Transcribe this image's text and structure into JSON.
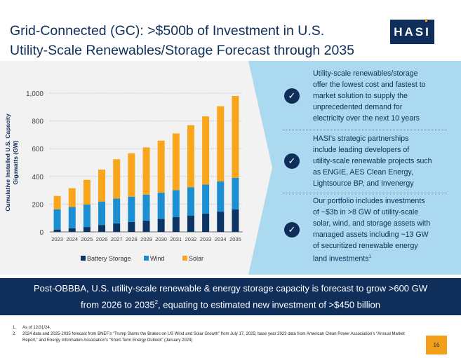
{
  "header": {
    "title_line1": "Grid-Connected (GC): >$500b of Investment in U.S.",
    "title_line2": "Utility-Scale Renewables/Storage Forecast through 2035",
    "logo_text": "HASI"
  },
  "colors": {
    "navy": "#0f2e5a",
    "battery": "#0c3566",
    "wind": "#1b8fd2",
    "solar": "#f9a61c",
    "panel": "#abd9ef",
    "accent": "#f5a01a"
  },
  "chart_data": {
    "type": "bar",
    "stacked": true,
    "categories": [
      "2023",
      "2024",
      "2025",
      "2026",
      "2027",
      "2028",
      "2029",
      "2030",
      "2031",
      "2032",
      "2033",
      "2034",
      "2035"
    ],
    "series": [
      {
        "name": "Battery Storage",
        "values": [
          17,
          27,
          35,
          50,
          61,
          72,
          81,
          93,
          106,
          118,
          131,
          146,
          162
        ]
      },
      {
        "name": "Wind",
        "values": [
          146,
          153,
          162,
          169,
          180,
          182,
          187,
          190,
          195,
          204,
          211,
          218,
          227
        ]
      },
      {
        "name": "Solar",
        "values": [
          96,
          135,
          178,
          230,
          283,
          312,
          341,
          375,
          409,
          447,
          491,
          542,
          591
        ]
      }
    ],
    "ylabel_line1": "Cumulative Installed U.S. Capacity",
    "ylabel_line2": "Gigawatts (GW)",
    "yticks": [
      "0",
      "200",
      "400",
      "600",
      "800",
      "1,000"
    ],
    "ylim": [
      0,
      1000
    ],
    "grid": true,
    "legend": "bottom"
  },
  "panel": {
    "items": [
      {
        "lines": [
          "Utility-scale renewables/storage",
          "offer the lowest cost and fastest to",
          "market solution to supply the",
          "unprecedented demand for",
          "electricity over the next 10 years"
        ]
      },
      {
        "lines": [
          "HASI’s strategic partnerships",
          "include leading developers of",
          "utility-scale renewable projects such",
          "as ENGIE, AES Clean Energy,",
          "Lightsource BP, and Invenergy"
        ]
      },
      {
        "lines": [
          "Our portfolio includes investments",
          "of ~$3b in >8 GW of utility-scale",
          "solar, wind, and storage assets with",
          "managed assets including ~13 GW",
          "of securitized renewable energy",
          "land investments"
        ],
        "sup": "1"
      }
    ]
  },
  "banner": {
    "line1": "Post-OBBBA, U.S. utility-scale renewable & energy storage capacity is forecast to grow >600 GW",
    "line2_a": "from 2026 to 2035",
    "line2_sup": "2",
    "line2_b": ", equating to estimated new investment of >$450 billion"
  },
  "footnotes": [
    {
      "num": "1.",
      "text": "As of 12/31/24."
    },
    {
      "num": "2.",
      "text": "2024 data and 2025-2035 forecast from BNEF’s “Trump Slams the Brakes on US Wind and Solar Growth” from July 17, 2025; base year 2023 data from American Clean Power Association’s “Annual Market Report,” and Energy Information Association’s “Short-Term Energy Outlook” (January 2024)"
    }
  ],
  "page_number": "16"
}
